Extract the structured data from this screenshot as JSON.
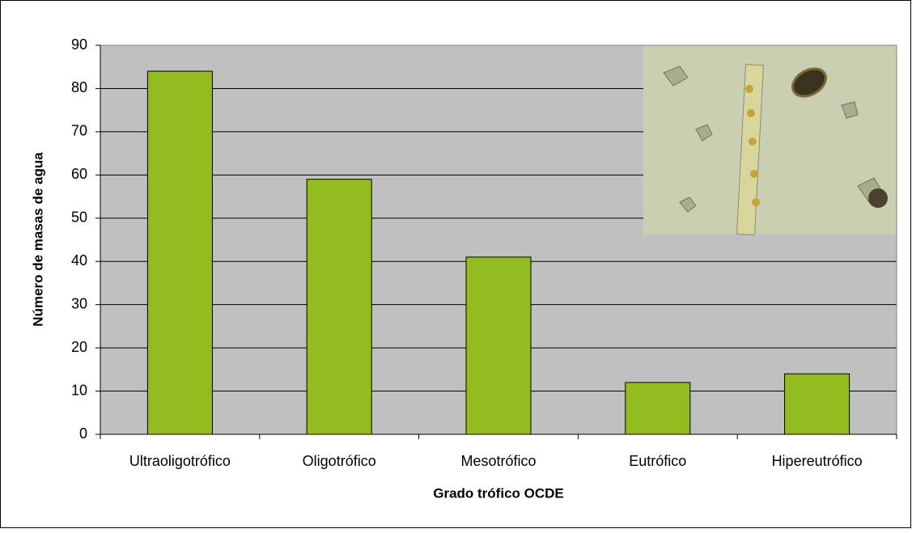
{
  "chart_data": {
    "type": "bar",
    "x_label": "Grado trófico OCDE",
    "y_label": "Número de masas de agua",
    "categories": [
      "Ultraoligotrófico",
      "Oligotrófico",
      "Mesotrófico",
      "Eutrófico",
      "Hipereutrófico"
    ],
    "values": [
      84,
      59,
      41,
      12,
      14
    ],
    "color": "#93bd1f",
    "ylim": [
      0,
      90
    ],
    "yticks": [
      0,
      10,
      20,
      30,
      40,
      50,
      60,
      70,
      80,
      90
    ],
    "grid": true
  }
}
